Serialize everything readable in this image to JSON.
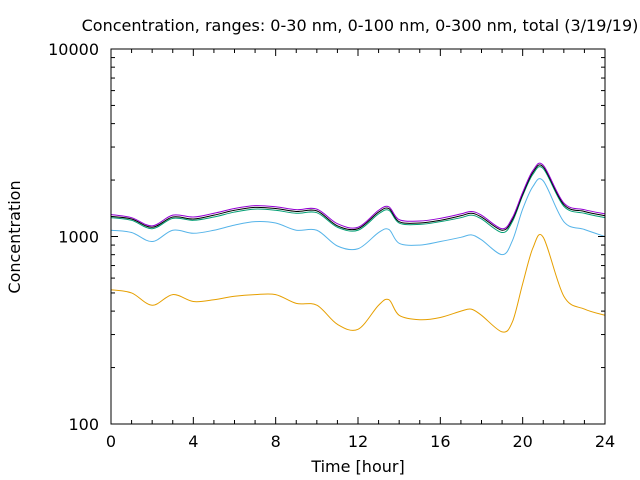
{
  "chart_data": {
    "type": "line",
    "title": "Concentration, ranges: 0-30 nm, 0-100 nm, 0-300 nm, total (3/19/19)",
    "xlabel": "Time [hour]",
    "ylabel": "Concentration",
    "xlim": [
      0,
      24
    ],
    "ylim": [
      100,
      10000
    ],
    "yscale": "log",
    "grid": false,
    "x_ticks": [
      0,
      4,
      8,
      12,
      16,
      20,
      24
    ],
    "x_tick_labels": [
      "0",
      "4",
      "8",
      "12",
      "16",
      "20",
      "24"
    ],
    "y_ticks": [
      100,
      1000,
      10000
    ],
    "y_tick_labels": [
      "100",
      "1000",
      "10000"
    ],
    "x": [
      0,
      1,
      2,
      3,
      4,
      5,
      6,
      7,
      8,
      9,
      10,
      11,
      12,
      13,
      13.5,
      14,
      15,
      16,
      17,
      17.5,
      18,
      19,
      19.5,
      20,
      20.5,
      21,
      22,
      23,
      24
    ],
    "series": [
      {
        "color": "#e69f00",
        "values": [
          520,
          500,
          430,
          490,
          450,
          460,
          480,
          490,
          490,
          440,
          430,
          340,
          320,
          430,
          460,
          380,
          360,
          370,
          400,
          410,
          380,
          310,
          350,
          560,
          870,
          990,
          480,
          410,
          380
        ]
      },
      {
        "color": "#56b4e9",
        "values": [
          1080,
          1050,
          940,
          1080,
          1040,
          1080,
          1150,
          1200,
          1180,
          1080,
          1080,
          890,
          860,
          1050,
          1090,
          920,
          900,
          940,
          990,
          1020,
          960,
          800,
          950,
          1400,
          1850,
          1980,
          1200,
          1090,
          1000
        ]
      },
      {
        "color": "#009e73",
        "values": [
          1260,
          1220,
          1100,
          1250,
          1220,
          1270,
          1350,
          1400,
          1380,
          1330,
          1340,
          1120,
          1080,
          1320,
          1380,
          1180,
          1160,
          1200,
          1260,
          1300,
          1240,
          1050,
          1200,
          1650,
          2150,
          2300,
          1450,
          1330,
          1260
        ]
      },
      {
        "color": "#000000",
        "values": [
          1280,
          1240,
          1120,
          1270,
          1240,
          1300,
          1380,
          1430,
          1410,
          1360,
          1370,
          1140,
          1100,
          1350,
          1410,
          1200,
          1180,
          1220,
          1290,
          1330,
          1270,
          1080,
          1230,
          1680,
          2200,
          2350,
          1480,
          1360,
          1290
        ]
      },
      {
        "color": "#9400d3",
        "values": [
          1310,
          1260,
          1140,
          1300,
          1270,
          1330,
          1410,
          1460,
          1440,
          1390,
          1400,
          1170,
          1120,
          1380,
          1440,
          1230,
          1210,
          1250,
          1320,
          1360,
          1300,
          1100,
          1260,
          1720,
          2250,
          2400,
          1510,
          1390,
          1320
        ]
      }
    ]
  }
}
